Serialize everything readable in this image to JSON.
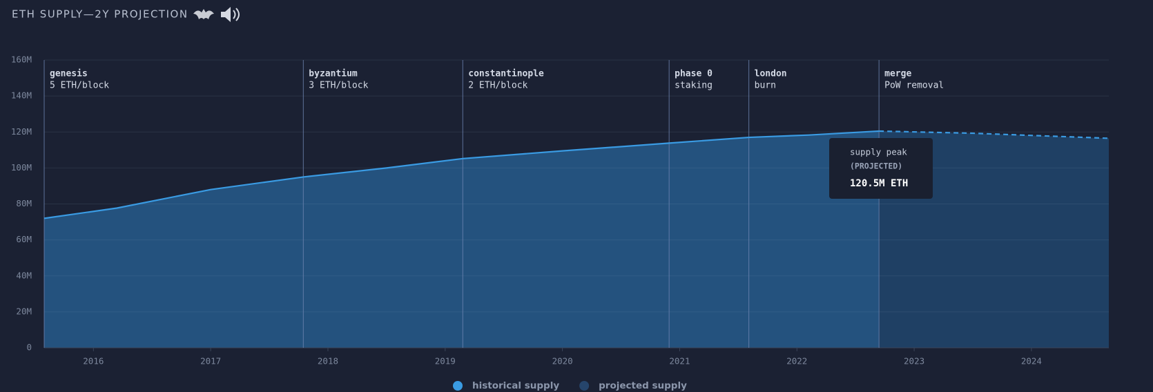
{
  "chart_data": {
    "type": "area",
    "title": "ETH SUPPLY—2Y PROJECTION",
    "xlim": [
      2015.58,
      2024.66
    ],
    "xticks": [
      2016,
      2017,
      2018,
      2019,
      2020,
      2021,
      2022,
      2023,
      2024
    ],
    "ylim": [
      0,
      160
    ],
    "yticks": [
      0,
      {
        "value": 20,
        "label": "20M"
      },
      {
        "value": 40,
        "label": "40M"
      },
      {
        "value": 60,
        "label": "60M"
      },
      {
        "value": 80,
        "label": "80M"
      },
      {
        "value": 100,
        "label": "100M"
      },
      {
        "value": 120,
        "label": "120M"
      },
      {
        "value": 140,
        "label": "140M"
      },
      {
        "value": 160,
        "label": "160M"
      }
    ],
    "grid": true,
    "series": [
      {
        "name": "historical supply",
        "color": "#3a9be3",
        "fill": "#24527e",
        "dashed": false,
        "x": [
          2015.58,
          2016.2,
          2017.0,
          2017.79,
          2018.5,
          2019.15,
          2020.0,
          2020.91,
          2021.59,
          2022.1,
          2022.7
        ],
        "values": [
          72.0,
          77.7,
          88.0,
          95.0,
          100.0,
          105.2,
          109.5,
          113.8,
          117.0,
          118.3,
          120.5
        ]
      },
      {
        "name": "projected supply",
        "color": "#3a9be3",
        "fill": "#1f4064",
        "legend_color": "#26456c",
        "dashed": true,
        "x": [
          2022.7,
          2023.5,
          2024.66
        ],
        "values": [
          120.5,
          119.3,
          116.5
        ]
      }
    ],
    "events": [
      {
        "x": 2015.58,
        "label": "genesis",
        "detail": "5 ETH/block"
      },
      {
        "x": 2017.79,
        "label": "byzantium",
        "detail": "3 ETH/block"
      },
      {
        "x": 2019.15,
        "label": "constantinople",
        "detail": "2 ETH/block"
      },
      {
        "x": 2020.91,
        "label": "phase 0",
        "detail": "staking"
      },
      {
        "x": 2021.59,
        "label": "london",
        "detail": "burn"
      },
      {
        "x": 2022.7,
        "label": "merge",
        "detail": "PoW removal"
      }
    ],
    "tooltip": {
      "title": "supply peak",
      "subtitle": "(PROJECTED)",
      "text": "120.5M ETH"
    },
    "legend": "bottom"
  }
}
